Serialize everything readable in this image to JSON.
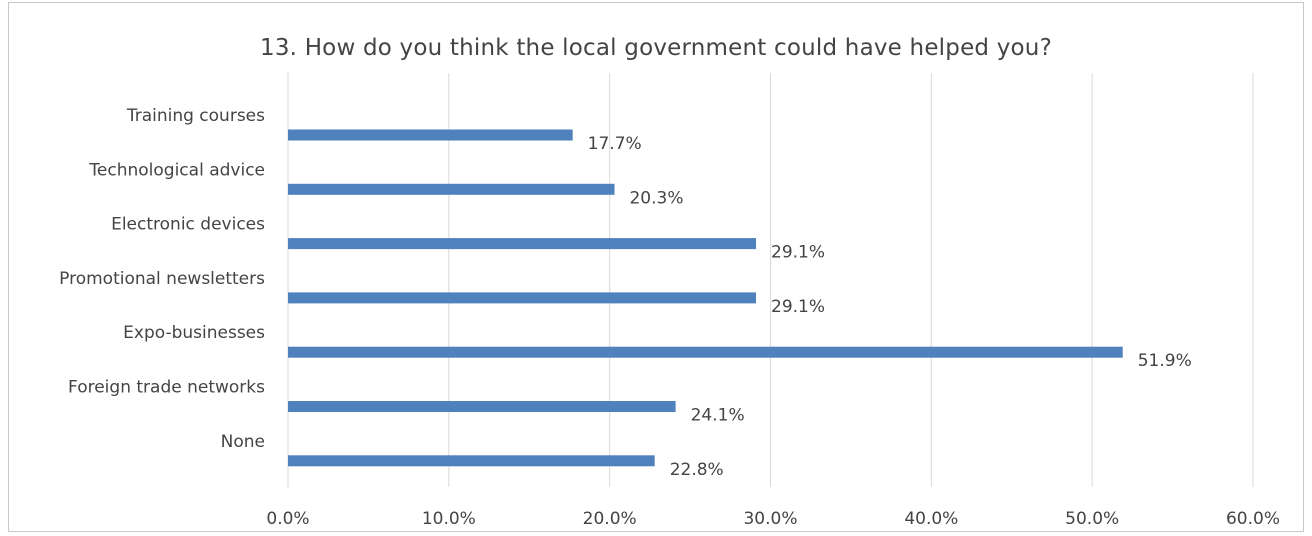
{
  "chart_data": {
    "type": "bar",
    "orientation": "horizontal",
    "title": "13. How do you think the local government could have helped you?",
    "categories": [
      "Training courses",
      "Technological advice",
      "Electronic devices",
      "Promotional newsletters",
      "Expo-businesses",
      "Foreign trade networks",
      "None"
    ],
    "values": [
      17.7,
      20.3,
      29.1,
      29.1,
      51.9,
      24.1,
      22.8
    ],
    "data_labels": [
      "17.7%",
      "20.3%",
      "29.1%",
      "29.1%",
      "51.9%",
      "24.1%",
      "22.8%"
    ],
    "xlim": [
      0,
      60
    ],
    "x_ticks": [
      0,
      10,
      20,
      30,
      40,
      50,
      60
    ],
    "x_tick_labels": [
      "0.0%",
      "10.0%",
      "20.0%",
      "30.0%",
      "40.0%",
      "50.0%",
      "60.0%"
    ],
    "grid": true,
    "legend": "none",
    "bar_color": "#4f81bd"
  }
}
